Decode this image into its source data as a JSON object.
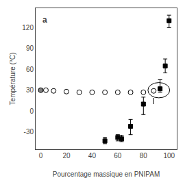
{
  "chart_data": {
    "type": "scatter",
    "title": "a",
    "x_label": "Pourcentage massique en PNIPAM",
    "y_label": "Température (°C)",
    "xlim": [
      -4,
      106
    ],
    "ylim": [
      -55,
      148
    ],
    "xticks": [
      0,
      20,
      40,
      60,
      80,
      100
    ],
    "yticks": [
      -30,
      0,
      30,
      60,
      90,
      120
    ],
    "grid": false,
    "series": [
      {
        "type": "scatter",
        "marker": "circle",
        "color": "gray",
        "x": [
          0
        ],
        "values": [
          30
        ]
      },
      {
        "type": "scatter",
        "marker": "circle",
        "color": "white",
        "x": [
          4,
          10,
          20,
          30,
          40,
          50,
          60,
          70,
          80
        ],
        "values": [
          30,
          29,
          28,
          27,
          27,
          27,
          27,
          27,
          27
        ]
      },
      {
        "type": "scatter",
        "marker": "circle",
        "color": "white",
        "x": [
          88
        ],
        "values": [
          29
        ]
      },
      {
        "type": "scatter",
        "marker": "square",
        "color": "black",
        "x": [
          50,
          60,
          63,
          70,
          80,
          93,
          97,
          100
        ],
        "values": [
          -43,
          -38,
          -40,
          -22,
          10,
          32,
          65,
          130
        ],
        "error_low": [
          4,
          5,
          4,
          12,
          15,
          5,
          10,
          10
        ],
        "error_high": [
          5,
          4,
          5,
          10,
          10,
          13,
          10,
          8
        ]
      },
      {
        "type": "line",
        "line_style": "dashed",
        "color": "black",
        "x": [
          88,
          88
        ],
        "values": [
          10,
          28
        ]
      }
    ],
    "ellipse": {
      "center": [
        92,
        30
      ],
      "width": 17,
      "height": 22,
      "color": "black"
    }
  }
}
